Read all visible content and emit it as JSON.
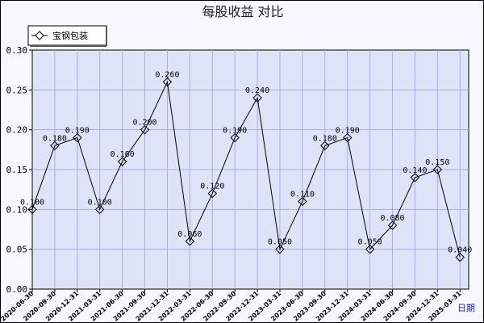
{
  "chart_data": {
    "type": "line",
    "title": "每股收益  对比",
    "x_label": "日期",
    "ylim": [
      0,
      0.3
    ],
    "y_ticks": [
      "0.00",
      "0.05",
      "0.10",
      "0.15",
      "0.20",
      "0.25",
      "0.30"
    ],
    "grid": true,
    "legend_position": "top-left",
    "categories": [
      "2020-06-30",
      "2020-09-30",
      "2020-12-31",
      "2021-03-31",
      "2021-06-30",
      "2021-09-30",
      "2021-12-31",
      "2022-03-31",
      "2022-06-30",
      "2022-09-30",
      "2022-12-31",
      "2023-03-31",
      "2023-06-30",
      "2023-09-30",
      "2023-12-31",
      "2024-03-31",
      "2024-06-30",
      "2024-09-30",
      "2024-12-31",
      "2025-03-31"
    ],
    "series": [
      {
        "name": "宝钢包装",
        "values": [
          0.1,
          0.18,
          0.19,
          0.1,
          0.16,
          0.2,
          0.26,
          0.06,
          0.12,
          0.19,
          0.24,
          0.05,
          0.11,
          0.18,
          0.19,
          0.05,
          0.08,
          0.14,
          0.15,
          0.04
        ],
        "labels": [
          "0.100",
          "0.180",
          "0.190",
          "0.100",
          "0.160",
          "0.200",
          "0.260",
          "0.060",
          "0.120",
          "0.190",
          "0.240",
          "0.050",
          "0.110",
          "0.180",
          "0.190",
          "0.050",
          "0.080",
          "0.140",
          "0.150",
          "0.040"
        ],
        "color": "#000000",
        "marker": "diamond"
      }
    ],
    "colors": {
      "plot_bg": "#dfe3f8",
      "frame_bg": "#f7f7ff",
      "grid": "#a8aee0",
      "line": "#000000"
    }
  }
}
